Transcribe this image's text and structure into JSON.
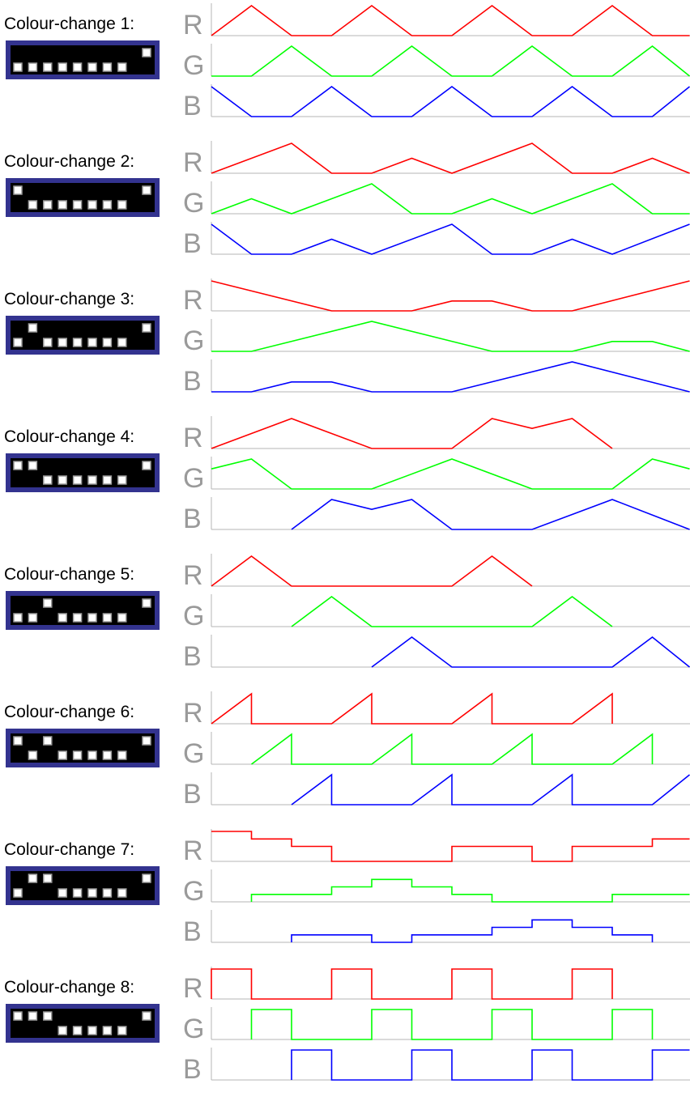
{
  "channel_labels": [
    "R",
    "G",
    "B"
  ],
  "colors": {
    "R": "#ff0000",
    "G": "#00ff00",
    "B": "#0000ff",
    "axis": "#b4b4b4",
    "chip_frame": "#33338f",
    "chip_body": "#000000",
    "chip_led": "#ffffff"
  },
  "modes": [
    {
      "title": "Colour-change 1:",
      "pattern": {
        "top": [
          0,
          0,
          0,
          0,
          0,
          0,
          0,
          0,
          1
        ],
        "bottom": [
          1,
          1,
          1,
          1,
          1,
          1,
          1,
          1,
          0
        ]
      },
      "R": [
        [
          0,
          0
        ],
        [
          1,
          1
        ],
        [
          2,
          0
        ],
        [
          3,
          0
        ],
        [
          4,
          1
        ],
        [
          5,
          0
        ],
        [
          6,
          0
        ],
        [
          7,
          1
        ],
        [
          8,
          0
        ],
        [
          9,
          0
        ],
        [
          10,
          1
        ],
        [
          11,
          0
        ],
        [
          12,
          0
        ]
      ],
      "G": [
        [
          0,
          0
        ],
        [
          1,
          0
        ],
        [
          2,
          1
        ],
        [
          3,
          0
        ],
        [
          4,
          0
        ],
        [
          5,
          1
        ],
        [
          6,
          0
        ],
        [
          7,
          0
        ],
        [
          8,
          1
        ],
        [
          9,
          0
        ],
        [
          10,
          0
        ],
        [
          11,
          1
        ],
        [
          12,
          0
        ]
      ],
      "B": [
        [
          0,
          1
        ],
        [
          1,
          0
        ],
        [
          2,
          0
        ],
        [
          3,
          1
        ],
        [
          4,
          0
        ],
        [
          5,
          0
        ],
        [
          6,
          1
        ],
        [
          7,
          0
        ],
        [
          8,
          0
        ],
        [
          9,
          1
        ],
        [
          10,
          0
        ],
        [
          11,
          0
        ],
        [
          12,
          1
        ]
      ]
    },
    {
      "title": "Colour-change 2:",
      "pattern": {
        "top": [
          1,
          0,
          0,
          0,
          0,
          0,
          0,
          0,
          1
        ],
        "bottom": [
          0,
          1,
          1,
          1,
          1,
          1,
          1,
          1,
          0
        ]
      },
      "R": [
        [
          0,
          0
        ],
        [
          2,
          1
        ],
        [
          3,
          0
        ],
        [
          4,
          0
        ],
        [
          5,
          0.5
        ],
        [
          6,
          0
        ],
        [
          8,
          1
        ],
        [
          9,
          0
        ],
        [
          10,
          0
        ],
        [
          11,
          0.5
        ],
        [
          12,
          0
        ]
      ],
      "G": [
        [
          0,
          0
        ],
        [
          1,
          0.5
        ],
        [
          2,
          0
        ],
        [
          4,
          1
        ],
        [
          5,
          0
        ],
        [
          6,
          0
        ],
        [
          7,
          0.5
        ],
        [
          8,
          0
        ],
        [
          10,
          1
        ],
        [
          11,
          0
        ],
        [
          12,
          0
        ]
      ],
      "B": [
        [
          0,
          1
        ],
        [
          1,
          0
        ],
        [
          2,
          0
        ],
        [
          3,
          0.5
        ],
        [
          4,
          0
        ],
        [
          6,
          1
        ],
        [
          7,
          0
        ],
        [
          8,
          0
        ],
        [
          9,
          0.5
        ],
        [
          10,
          0
        ],
        [
          12,
          1
        ]
      ]
    },
    {
      "title": "Colour-change 3:",
      "pattern": {
        "top": [
          0,
          1,
          0,
          0,
          0,
          0,
          0,
          0,
          1
        ],
        "bottom": [
          1,
          0,
          1,
          1,
          1,
          1,
          1,
          1,
          0
        ]
      },
      "R": [
        [
          0,
          1
        ],
        [
          3,
          0
        ],
        [
          5,
          0
        ],
        [
          6,
          0.33
        ],
        [
          7,
          0.33
        ],
        [
          8,
          0
        ],
        [
          9,
          0
        ],
        [
          12,
          1
        ]
      ],
      "G": [
        [
          0,
          0
        ],
        [
          1,
          0
        ],
        [
          4,
          1
        ],
        [
          7,
          0
        ],
        [
          9,
          0
        ],
        [
          10,
          0.33
        ],
        [
          11,
          0.33
        ],
        [
          12,
          0
        ]
      ],
      "B": [
        [
          0,
          0
        ],
        [
          1,
          0
        ],
        [
          2,
          0.33
        ],
        [
          3,
          0.33
        ],
        [
          4,
          0
        ],
        [
          6,
          0
        ],
        [
          9,
          1
        ],
        [
          12,
          0
        ]
      ]
    },
    {
      "title": "Colour-change 4:",
      "pattern": {
        "top": [
          1,
          1,
          0,
          0,
          0,
          0,
          0,
          0,
          1
        ],
        "bottom": [
          0,
          0,
          1,
          1,
          1,
          1,
          1,
          1,
          0
        ]
      },
      "R": [
        [
          0,
          0
        ],
        [
          2,
          1
        ],
        [
          4,
          0
        ],
        [
          6,
          0
        ],
        [
          7,
          1
        ],
        [
          8,
          0.67
        ],
        [
          9,
          1
        ],
        [
          10,
          0
        ]
      ],
      "G": [
        [
          0,
          0.67
        ],
        [
          1,
          1
        ],
        [
          2,
          0
        ],
        [
          4,
          0
        ],
        [
          6,
          1
        ],
        [
          8,
          0
        ],
        [
          10,
          0
        ],
        [
          11,
          1
        ],
        [
          12,
          0.67
        ]
      ],
      "B": [
        [
          2,
          0
        ],
        [
          3,
          1
        ],
        [
          4,
          0.67
        ],
        [
          5,
          1
        ],
        [
          6,
          0
        ],
        [
          8,
          0
        ],
        [
          10,
          1
        ],
        [
          12,
          0
        ]
      ]
    },
    {
      "title": "Colour-change 5:",
      "pattern": {
        "top": [
          0,
          0,
          1,
          0,
          0,
          0,
          0,
          0,
          1
        ],
        "bottom": [
          1,
          1,
          0,
          1,
          1,
          1,
          1,
          1,
          0
        ]
      },
      "R": [
        [
          0,
          0
        ],
        [
          1,
          1
        ],
        [
          2,
          0
        ],
        [
          6,
          0
        ],
        [
          7,
          1
        ],
        [
          8,
          0
        ]
      ],
      "G": [
        [
          2,
          0
        ],
        [
          3,
          1
        ],
        [
          4,
          0
        ],
        [
          8,
          0
        ],
        [
          9,
          1
        ],
        [
          10,
          0
        ]
      ],
      "B": [
        [
          4,
          0
        ],
        [
          5,
          1
        ],
        [
          6,
          0
        ],
        [
          10,
          0
        ],
        [
          11,
          1
        ],
        [
          12,
          0
        ]
      ]
    },
    {
      "title": "Colour-change 6:",
      "pattern": {
        "top": [
          1,
          0,
          1,
          0,
          0,
          0,
          0,
          0,
          1
        ],
        "bottom": [
          0,
          1,
          0,
          1,
          1,
          1,
          1,
          1,
          0
        ]
      },
      "R": [
        [
          0,
          0
        ],
        [
          1,
          1
        ],
        [
          1,
          0
        ],
        [
          3,
          0
        ],
        [
          4,
          1
        ],
        [
          4,
          0
        ],
        [
          6,
          0
        ],
        [
          7,
          1
        ],
        [
          7,
          0
        ],
        [
          9,
          0
        ],
        [
          10,
          1
        ],
        [
          10,
          0
        ]
      ],
      "G": [
        [
          1,
          0
        ],
        [
          2,
          1
        ],
        [
          2,
          0
        ],
        [
          4,
          0
        ],
        [
          5,
          1
        ],
        [
          5,
          0
        ],
        [
          7,
          0
        ],
        [
          8,
          1
        ],
        [
          8,
          0
        ],
        [
          10,
          0
        ],
        [
          11,
          1
        ],
        [
          11,
          0
        ]
      ],
      "B": [
        [
          2,
          0
        ],
        [
          3,
          1
        ],
        [
          3,
          0
        ],
        [
          5,
          0
        ],
        [
          6,
          1
        ],
        [
          6,
          0
        ],
        [
          8,
          0
        ],
        [
          9,
          1
        ],
        [
          9,
          0
        ],
        [
          11,
          0
        ],
        [
          12,
          1
        ]
      ]
    },
    {
      "title": "Colour-change 7:",
      "pattern": {
        "top": [
          0,
          1,
          1,
          0,
          0,
          0,
          0,
          0,
          1
        ],
        "bottom": [
          1,
          0,
          0,
          1,
          1,
          1,
          1,
          1,
          0
        ]
      },
      "R": [
        [
          0,
          1
        ],
        [
          1,
          1
        ],
        [
          1,
          0.75
        ],
        [
          2,
          0.75
        ],
        [
          2,
          0.5
        ],
        [
          3,
          0.5
        ],
        [
          3,
          0
        ],
        [
          6,
          0
        ],
        [
          6,
          0.5
        ],
        [
          8,
          0.5
        ],
        [
          8,
          0
        ],
        [
          9,
          0
        ],
        [
          9,
          0.5
        ],
        [
          11,
          0.5
        ],
        [
          11,
          0.75
        ],
        [
          12,
          0.75
        ]
      ],
      "G": [
        [
          1,
          0
        ],
        [
          1,
          0.25
        ],
        [
          3,
          0.25
        ],
        [
          3,
          0.5
        ],
        [
          4,
          0.5
        ],
        [
          4,
          0.75
        ],
        [
          5,
          0.75
        ],
        [
          5,
          0.5
        ],
        [
          6,
          0.5
        ],
        [
          6,
          0.25
        ],
        [
          7,
          0.25
        ],
        [
          7,
          0
        ],
        [
          10,
          0
        ],
        [
          10,
          0.25
        ],
        [
          12,
          0.25
        ]
      ],
      "B": [
        [
          2,
          0
        ],
        [
          2,
          0.25
        ],
        [
          4,
          0.25
        ],
        [
          4,
          0
        ],
        [
          5,
          0
        ],
        [
          5,
          0.25
        ],
        [
          7,
          0.25
        ],
        [
          7,
          0.5
        ],
        [
          8,
          0.5
        ],
        [
          8,
          0.75
        ],
        [
          9,
          0.75
        ],
        [
          9,
          0.5
        ],
        [
          10,
          0.5
        ],
        [
          10,
          0.25
        ],
        [
          11,
          0.25
        ],
        [
          11,
          0
        ]
      ]
    },
    {
      "title": "Colour-change 8:",
      "pattern": {
        "top": [
          1,
          1,
          1,
          0,
          0,
          0,
          0,
          0,
          1
        ],
        "bottom": [
          0,
          0,
          0,
          1,
          1,
          1,
          1,
          1,
          0
        ]
      },
      "R": [
        [
          0,
          0
        ],
        [
          0,
          1
        ],
        [
          1,
          1
        ],
        [
          1,
          0
        ],
        [
          3,
          0
        ],
        [
          3,
          1
        ],
        [
          4,
          1
        ],
        [
          4,
          0
        ],
        [
          6,
          0
        ],
        [
          6,
          1
        ],
        [
          7,
          1
        ],
        [
          7,
          0
        ],
        [
          9,
          0
        ],
        [
          9,
          1
        ],
        [
          10,
          1
        ],
        [
          10,
          0
        ]
      ],
      "G": [
        [
          1,
          0
        ],
        [
          1,
          1
        ],
        [
          2,
          1
        ],
        [
          2,
          0
        ],
        [
          4,
          0
        ],
        [
          4,
          1
        ],
        [
          5,
          1
        ],
        [
          5,
          0
        ],
        [
          7,
          0
        ],
        [
          7,
          1
        ],
        [
          8,
          1
        ],
        [
          8,
          0
        ],
        [
          10,
          0
        ],
        [
          10,
          1
        ],
        [
          11,
          1
        ],
        [
          11,
          0
        ]
      ],
      "B": [
        [
          2,
          0
        ],
        [
          2,
          1
        ],
        [
          3,
          1
        ],
        [
          3,
          0
        ],
        [
          5,
          0
        ],
        [
          5,
          1
        ],
        [
          6,
          1
        ],
        [
          6,
          0
        ],
        [
          8,
          0
        ],
        [
          8,
          1
        ],
        [
          9,
          1
        ],
        [
          9,
          0
        ],
        [
          11,
          0
        ],
        [
          11,
          1
        ],
        [
          12,
          1
        ]
      ]
    }
  ]
}
